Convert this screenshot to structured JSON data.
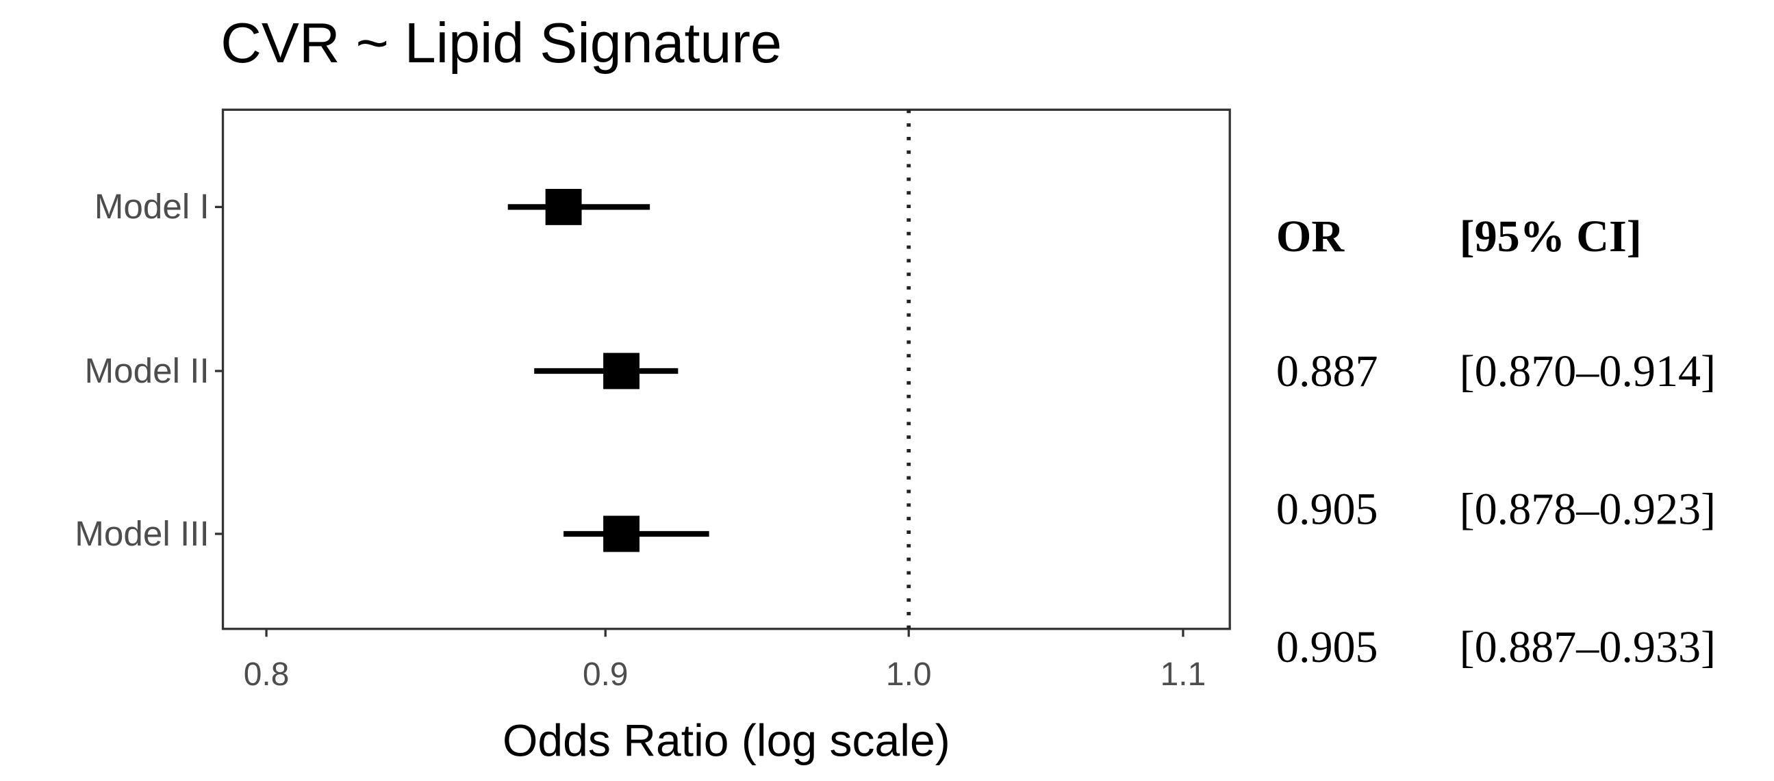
{
  "chart_data": {
    "type": "forest",
    "title": "CVR ~ Lipid Signature",
    "xlabel": "Odds Ratio (log scale)",
    "categories": [
      "Model I",
      "Model II",
      "Model III"
    ],
    "values": [
      0.887,
      0.905,
      0.905
    ],
    "ci_low": [
      0.87,
      0.878,
      0.887
    ],
    "ci_high": [
      0.914,
      0.923,
      0.933
    ],
    "color": "#000000",
    "log_x": true,
    "xlim": [
      0.788,
      1.118
    ],
    "xticks": [
      0.8,
      0.9,
      {
        "value": 1,
        "label": "1.0"
      },
      1.1
    ],
    "reference_line": 1,
    "table": {
      "headers": [
        "OR",
        "[95% CI]"
      ],
      "rows": [
        [
          "0.887",
          "[0.870–0.914]"
        ],
        [
          "0.905",
          "[0.878–0.923]"
        ],
        [
          "0.905",
          "[0.887–0.933]"
        ]
      ]
    }
  }
}
